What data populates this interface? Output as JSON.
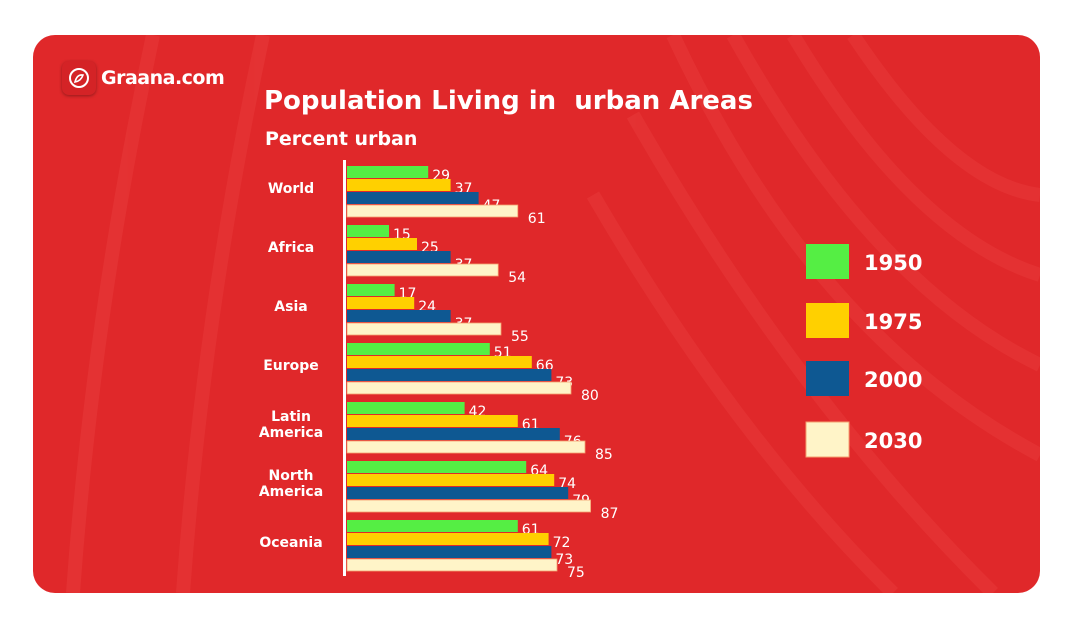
{
  "brand": {
    "name": "Graana.com"
  },
  "chart_data": {
    "type": "bar",
    "orientation": "horizontal",
    "title": "Population Living in  urban Areas",
    "subtitle": "Percent urban",
    "categories": [
      "World",
      "Africa",
      "Asia",
      "Europe",
      "Latin America",
      "North America",
      "Oceania"
    ],
    "series": [
      {
        "name": "1950",
        "color": "#55ee44",
        "values": [
          29,
          15,
          17,
          51,
          42,
          64,
          61
        ]
      },
      {
        "name": "1975",
        "color": "#ffd000",
        "values": [
          37,
          25,
          24,
          66,
          61,
          74,
          72
        ]
      },
      {
        "name": "2000",
        "color": "#0e5892",
        "values": [
          47,
          37,
          37,
          73,
          76,
          79,
          73
        ]
      },
      {
        "name": "2030",
        "color": "#fff4c8",
        "values": [
          61,
          54,
          55,
          80,
          85,
          87,
          75
        ]
      }
    ],
    "legend": "right",
    "grid": false,
    "xlim": [
      0,
      100
    ],
    "background_color": "#e0282a"
  }
}
